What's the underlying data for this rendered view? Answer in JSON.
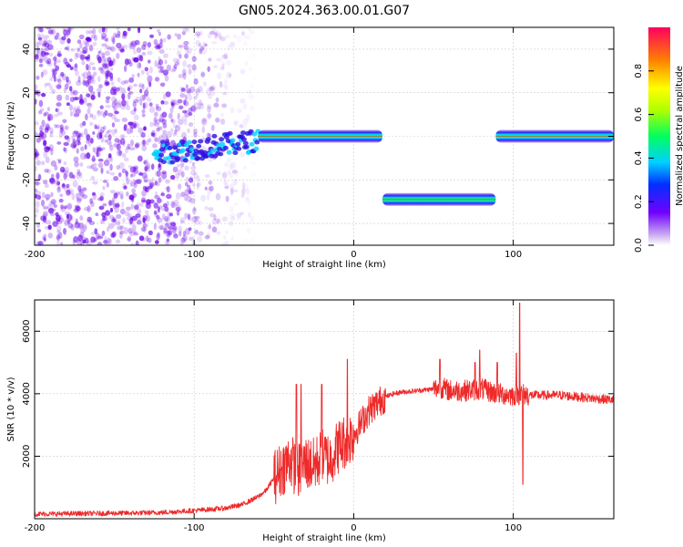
{
  "title": "GN05.2024.363.00.01.G07",
  "colors": {
    "snr_line": "#ee2a2a",
    "scatter_fill": "#6a00e8",
    "axis": "#000000",
    "grid": "#cccccc"
  },
  "chart_data": [
    {
      "type": "heatmap",
      "name": "spectrogram",
      "title": "",
      "xlabel": "Height of straight line (km)",
      "ylabel": "Frequency (Hz)",
      "xlim": [
        -200,
        163
      ],
      "ylim": [
        -50,
        50
      ],
      "xticks": [
        -200,
        -100,
        0,
        100
      ],
      "xtick_labels": [
        "-200",
        "-100",
        "0",
        "100"
      ],
      "yticks": [
        -40,
        -20,
        0,
        20,
        40
      ],
      "ytick_labels": [
        "-40",
        "-20",
        "0",
        "20",
        "40"
      ],
      "grid": true,
      "colorbar": {
        "label": "Normalized spectral amplitude",
        "range": [
          0,
          1
        ],
        "ticks": [
          0.0,
          0.2,
          0.4,
          0.6,
          0.8
        ],
        "tick_labels": [
          "0.0",
          "0.2",
          "0.4",
          "0.6",
          "0.8"
        ]
      },
      "segments": [
        {
          "x_start": -125,
          "x_end": -60,
          "freq": -8,
          "peak_amplitude": 0.3
        },
        {
          "x_start": -60,
          "x_end": 18,
          "freq": 0,
          "peak_amplitude": 0.95
        },
        {
          "x_start": 18,
          "x_end": 89,
          "freq": -29,
          "peak_amplitude": 0.9
        },
        {
          "x_start": 89,
          "x_end": 163,
          "freq": 0,
          "peak_amplitude": 1.0
        }
      ],
      "noise_region": {
        "x_start": -200,
        "x_end": -60,
        "amplitude": 0.2
      }
    },
    {
      "type": "line",
      "name": "snr",
      "title": "",
      "xlabel": "Height of straight line (km)",
      "ylabel": "SNR (10 * v/v)",
      "xlim": [
        -200,
        163
      ],
      "ylim": [
        0,
        7000
      ],
      "xticks": [
        -200,
        -100,
        0,
        100
      ],
      "xtick_labels": [
        "-200",
        "-100",
        "0",
        "100"
      ],
      "yticks": [
        2000,
        4000,
        6000
      ],
      "ytick_labels": [
        "2000",
        "4000",
        "6000"
      ],
      "grid": true,
      "x": [
        -200,
        -180,
        -160,
        -140,
        -120,
        -100,
        -90,
        -80,
        -70,
        -60,
        -55,
        -50,
        -45,
        -40,
        -35,
        -30,
        -25,
        -20,
        -15,
        -10,
        -5,
        0,
        5,
        10,
        15,
        20,
        25,
        30,
        40,
        50,
        55,
        60,
        70,
        80,
        90,
        100,
        105,
        110,
        120,
        130,
        140,
        150,
        163
      ],
      "y": [
        150,
        160,
        170,
        180,
        200,
        260,
        300,
        340,
        450,
        700,
        900,
        1300,
        1600,
        1900,
        1500,
        1800,
        1700,
        2000,
        1900,
        2300,
        2500,
        2700,
        3100,
        3500,
        3700,
        3900,
        4000,
        4050,
        4100,
        4150,
        4200,
        4100,
        4100,
        4150,
        4000,
        3950,
        4000,
        3950,
        3950,
        3950,
        3900,
        3850,
        3800
      ],
      "spikes": [
        {
          "x": -36,
          "y": 4300
        },
        {
          "x": -33,
          "y": 4300
        },
        {
          "x": -20,
          "y": 4300
        },
        {
          "x": -4,
          "y": 5100
        },
        {
          "x": 54,
          "y": 5100
        },
        {
          "x": 76,
          "y": 5000
        },
        {
          "x": 79,
          "y": 5400
        },
        {
          "x": 90,
          "y": 5000
        },
        {
          "x": 102,
          "y": 5300
        },
        {
          "x": 104,
          "y": 6900
        },
        {
          "x": 106,
          "y": 1100
        }
      ]
    }
  ]
}
